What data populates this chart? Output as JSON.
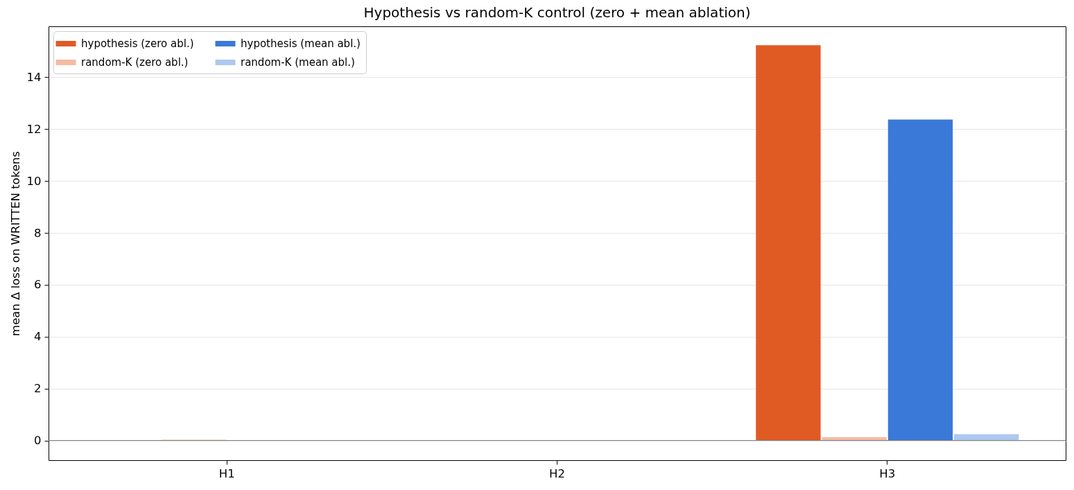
{
  "chart_data": {
    "type": "bar",
    "title": "Hypothesis vs random-K control (zero + mean ablation)",
    "ylabel": "mean Δ loss on WRITTEN tokens",
    "categories": [
      "H1",
      "H2",
      "H3"
    ],
    "series": [
      {
        "name": "hypothesis (zero abl.)",
        "color": "#e05a24",
        "values": [
          0,
          0,
          15.23
        ]
      },
      {
        "name": "random-K (zero abl.)",
        "color": "#f4bba2",
        "values": [
          0.03,
          0,
          0.13
        ]
      },
      {
        "name": "hypothesis (mean abl.)",
        "color": "#3a79d8",
        "values": [
          0,
          0,
          12.37
        ]
      },
      {
        "name": "random-K (mean abl.)",
        "color": "#aec8ef",
        "values": [
          0,
          0,
          0.24
        ]
      }
    ],
    "ylim": [
      -0.76,
      15.96
    ],
    "yticks": [
      0,
      2,
      4,
      6,
      8,
      10,
      12,
      14
    ],
    "grid": "y",
    "legend": "top left",
    "ref_lines": [
      {
        "axis": "y",
        "value": 0,
        "color": "#808080"
      }
    ]
  }
}
